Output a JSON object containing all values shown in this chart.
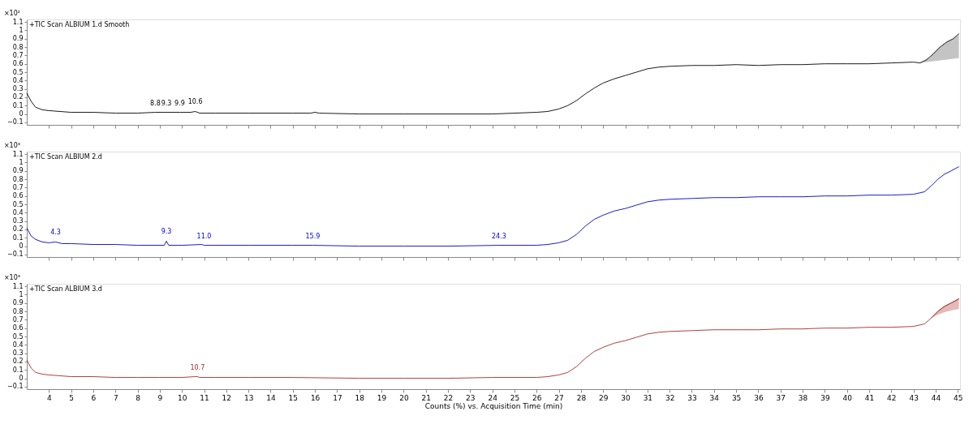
{
  "chart_data": [
    {
      "type": "line",
      "title": "+TIC Scan ALBIUM 1.d  Smooth",
      "ylabel": "×10²",
      "xlim": [
        3.0,
        45.1
      ],
      "xticks": [
        4,
        5,
        6,
        7,
        8,
        9,
        10,
        11,
        12,
        13,
        14,
        15,
        16,
        17,
        18,
        19,
        20,
        21,
        22,
        23,
        24,
        25,
        26,
        27,
        28,
        29,
        30,
        31,
        32,
        33,
        34,
        35,
        36,
        37,
        38,
        39,
        40,
        41,
        42,
        43,
        44,
        45
      ],
      "ylim": [
        -0.13,
        1.13
      ],
      "yticks": [
        -0.1,
        0,
        0.1,
        0.2,
        0.3,
        0.4,
        0.5,
        0.6,
        0.7,
        0.8,
        0.9,
        1,
        1.1
      ],
      "tick_labels": "y",
      "grid": false,
      "marker": "none",
      "series": [
        {
          "color": "#000000",
          "x": [
            3.0,
            3.2,
            3.4,
            3.7,
            4.0,
            4.5,
            5,
            6,
            7,
            8,
            8.8,
            9.3,
            9.9,
            10.4,
            10.6,
            10.8,
            11.5,
            13,
            15,
            15.8,
            16,
            16.2,
            18,
            20,
            22,
            24,
            25,
            26,
            26.5,
            27,
            27.4,
            27.8,
            28.2,
            28.6,
            29,
            29.5,
            30,
            30.5,
            31,
            31.5,
            32,
            33,
            34,
            35,
            36,
            37,
            38,
            39,
            40,
            41,
            42,
            43,
            43.3,
            43.6,
            43.9,
            44.2,
            44.5,
            44.8,
            45.05
          ],
          "values": [
            0.25,
            0.15,
            0.08,
            0.05,
            0.04,
            0.03,
            0.02,
            0.02,
            0.01,
            0.01,
            0.02,
            0.02,
            0.02,
            0.02,
            0.03,
            0.01,
            0.01,
            0.01,
            0.01,
            0.01,
            0.02,
            0.01,
            0.0,
            0.0,
            0.0,
            0.0,
            0.01,
            0.02,
            0.03,
            0.06,
            0.1,
            0.16,
            0.24,
            0.31,
            0.37,
            0.42,
            0.46,
            0.5,
            0.54,
            0.56,
            0.57,
            0.58,
            0.58,
            0.59,
            0.58,
            0.59,
            0.59,
            0.6,
            0.6,
            0.6,
            0.61,
            0.62,
            0.61,
            0.65,
            0.72,
            0.8,
            0.86,
            0.9,
            0.96
          ]
        },
        {
          "color": "#555555",
          "x": [
            43.3,
            43.6,
            43.9,
            44.2,
            44.5,
            44.8,
            45.05
          ],
          "values": [
            0.61,
            0.65,
            0.72,
            0.8,
            0.86,
            0.9,
            0.96
          ],
          "lower": [
            0.61,
            0.62,
            0.63,
            0.64,
            0.65,
            0.66,
            0.67
          ],
          "upper": [
            0.61,
            0.65,
            0.72,
            0.8,
            0.86,
            0.9,
            0.96
          ]
        }
      ],
      "annotations": [
        {
          "text": "8.8",
          "x": 8.8,
          "y": 0.02
        },
        {
          "text": "9.3",
          "x": 9.3,
          "y": 0.02
        },
        {
          "text": "9.9",
          "x": 9.9,
          "y": 0.02
        },
        {
          "text": "10.6",
          "x": 10.6,
          "y": 0.03
        }
      ]
    },
    {
      "type": "line",
      "title": "+TIC Scan ALBIUM 2.d",
      "ylabel": "×10³",
      "xlim": [
        3.0,
        45.1
      ],
      "xticks": [
        4,
        5,
        6,
        7,
        8,
        9,
        10,
        11,
        12,
        13,
        14,
        15,
        16,
        17,
        18,
        19,
        20,
        21,
        22,
        23,
        24,
        25,
        26,
        27,
        28,
        29,
        30,
        31,
        32,
        33,
        34,
        35,
        36,
        37,
        38,
        39,
        40,
        41,
        42,
        43,
        44,
        45
      ],
      "ylim": [
        -0.13,
        1.13
      ],
      "yticks": [
        -0.1,
        0,
        0.1,
        0.2,
        0.3,
        0.4,
        0.5,
        0.6,
        0.7,
        0.8,
        0.9,
        1,
        1.1
      ],
      "tick_labels": "y",
      "grid": false,
      "marker": "none",
      "series": [
        {
          "color": "#0000cc",
          "x": [
            3.0,
            3.2,
            3.4,
            3.7,
            4.0,
            4.3,
            4.6,
            5,
            6,
            7,
            8,
            9.2,
            9.3,
            9.4,
            10,
            10.9,
            11.0,
            11.2,
            13,
            15,
            15.9,
            18,
            20,
            22,
            24.3,
            25,
            26,
            26.5,
            27,
            27.4,
            27.8,
            28.2,
            28.6,
            29,
            29.5,
            30,
            30.5,
            31,
            31.5,
            32,
            33,
            34,
            35,
            36,
            37,
            38,
            39,
            40,
            41,
            42,
            43,
            43.5,
            43.8,
            44.1,
            44.4,
            44.7,
            45.05
          ],
          "values": [
            0.22,
            0.12,
            0.08,
            0.05,
            0.04,
            0.05,
            0.03,
            0.03,
            0.02,
            0.02,
            0.01,
            0.01,
            0.06,
            0.01,
            0.01,
            0.02,
            0.01,
            0.01,
            0.01,
            0.01,
            0.01,
            0.0,
            0.0,
            0.0,
            0.01,
            0.01,
            0.01,
            0.02,
            0.04,
            0.07,
            0.14,
            0.24,
            0.32,
            0.37,
            0.42,
            0.45,
            0.49,
            0.53,
            0.55,
            0.56,
            0.57,
            0.58,
            0.58,
            0.59,
            0.59,
            0.59,
            0.6,
            0.6,
            0.61,
            0.61,
            0.62,
            0.65,
            0.72,
            0.8,
            0.86,
            0.9,
            0.95
          ]
        }
      ],
      "annotations": [
        {
          "text": "4.3",
          "x": 4.3,
          "y": 0.05
        },
        {
          "text": "9.3",
          "x": 9.3,
          "y": 0.06
        },
        {
          "text": "11.0",
          "x": 11.0,
          "y": 0.01
        },
        {
          "text": "15.9",
          "x": 15.9,
          "y": 0.01
        },
        {
          "text": "24.3",
          "x": 24.3,
          "y": 0.01
        }
      ]
    },
    {
      "type": "line",
      "title": "+TIC Scan ALBIUM 3.d",
      "ylabel": "×10³",
      "xlabel": "Counts (%) vs. Acquisition Time (min)",
      "xlim": [
        3.0,
        45.1
      ],
      "xticks": [
        4,
        5,
        6,
        7,
        8,
        9,
        10,
        11,
        12,
        13,
        14,
        15,
        16,
        17,
        18,
        19,
        20,
        21,
        22,
        23,
        24,
        25,
        26,
        27,
        28,
        29,
        30,
        31,
        32,
        33,
        34,
        35,
        36,
        37,
        38,
        39,
        40,
        41,
        42,
        43,
        44,
        45
      ],
      "ylim": [
        -0.13,
        1.13
      ],
      "yticks": [
        -0.1,
        0,
        0.1,
        0.2,
        0.3,
        0.4,
        0.5,
        0.6,
        0.7,
        0.8,
        0.9,
        1,
        1.1
      ],
      "grid": false,
      "marker": "none",
      "series": [
        {
          "color": "#a52a2a",
          "x": [
            3.0,
            3.2,
            3.4,
            3.7,
            4.0,
            4.5,
            5,
            6,
            7,
            8,
            9,
            10,
            10.6,
            10.7,
            10.8,
            11.5,
            13,
            15,
            18,
            20,
            22,
            24,
            25,
            26,
            26.5,
            27,
            27.4,
            27.8,
            28.2,
            28.6,
            29,
            29.5,
            30,
            30.5,
            31,
            31.5,
            32,
            33,
            34,
            35,
            36,
            37,
            38,
            39,
            40,
            41,
            42,
            43,
            43.5,
            43.8,
            44.1,
            44.4,
            44.7,
            45.05
          ],
          "values": [
            0.22,
            0.12,
            0.07,
            0.05,
            0.04,
            0.03,
            0.02,
            0.02,
            0.01,
            0.01,
            0.01,
            0.01,
            0.02,
            0.02,
            0.01,
            0.01,
            0.01,
            0.01,
            0.0,
            0.0,
            0.0,
            0.01,
            0.01,
            0.01,
            0.02,
            0.04,
            0.07,
            0.14,
            0.24,
            0.32,
            0.37,
            0.42,
            0.45,
            0.49,
            0.53,
            0.55,
            0.56,
            0.57,
            0.58,
            0.58,
            0.58,
            0.59,
            0.59,
            0.6,
            0.6,
            0.61,
            0.61,
            0.62,
            0.65,
            0.72,
            0.8,
            0.86,
            0.9,
            0.95
          ]
        },
        {
          "color": "#b03a3a",
          "x": [
            43.8,
            44.1,
            44.4,
            44.7,
            45.05
          ],
          "values": [
            0.72,
            0.8,
            0.86,
            0.9,
            0.95
          ],
          "lower": [
            0.72,
            0.76,
            0.79,
            0.81,
            0.83
          ],
          "upper": [
            0.72,
            0.8,
            0.86,
            0.9,
            0.95
          ]
        }
      ],
      "annotations": [
        {
          "text": "10.7",
          "x": 10.7,
          "y": 0.02
        }
      ]
    }
  ]
}
